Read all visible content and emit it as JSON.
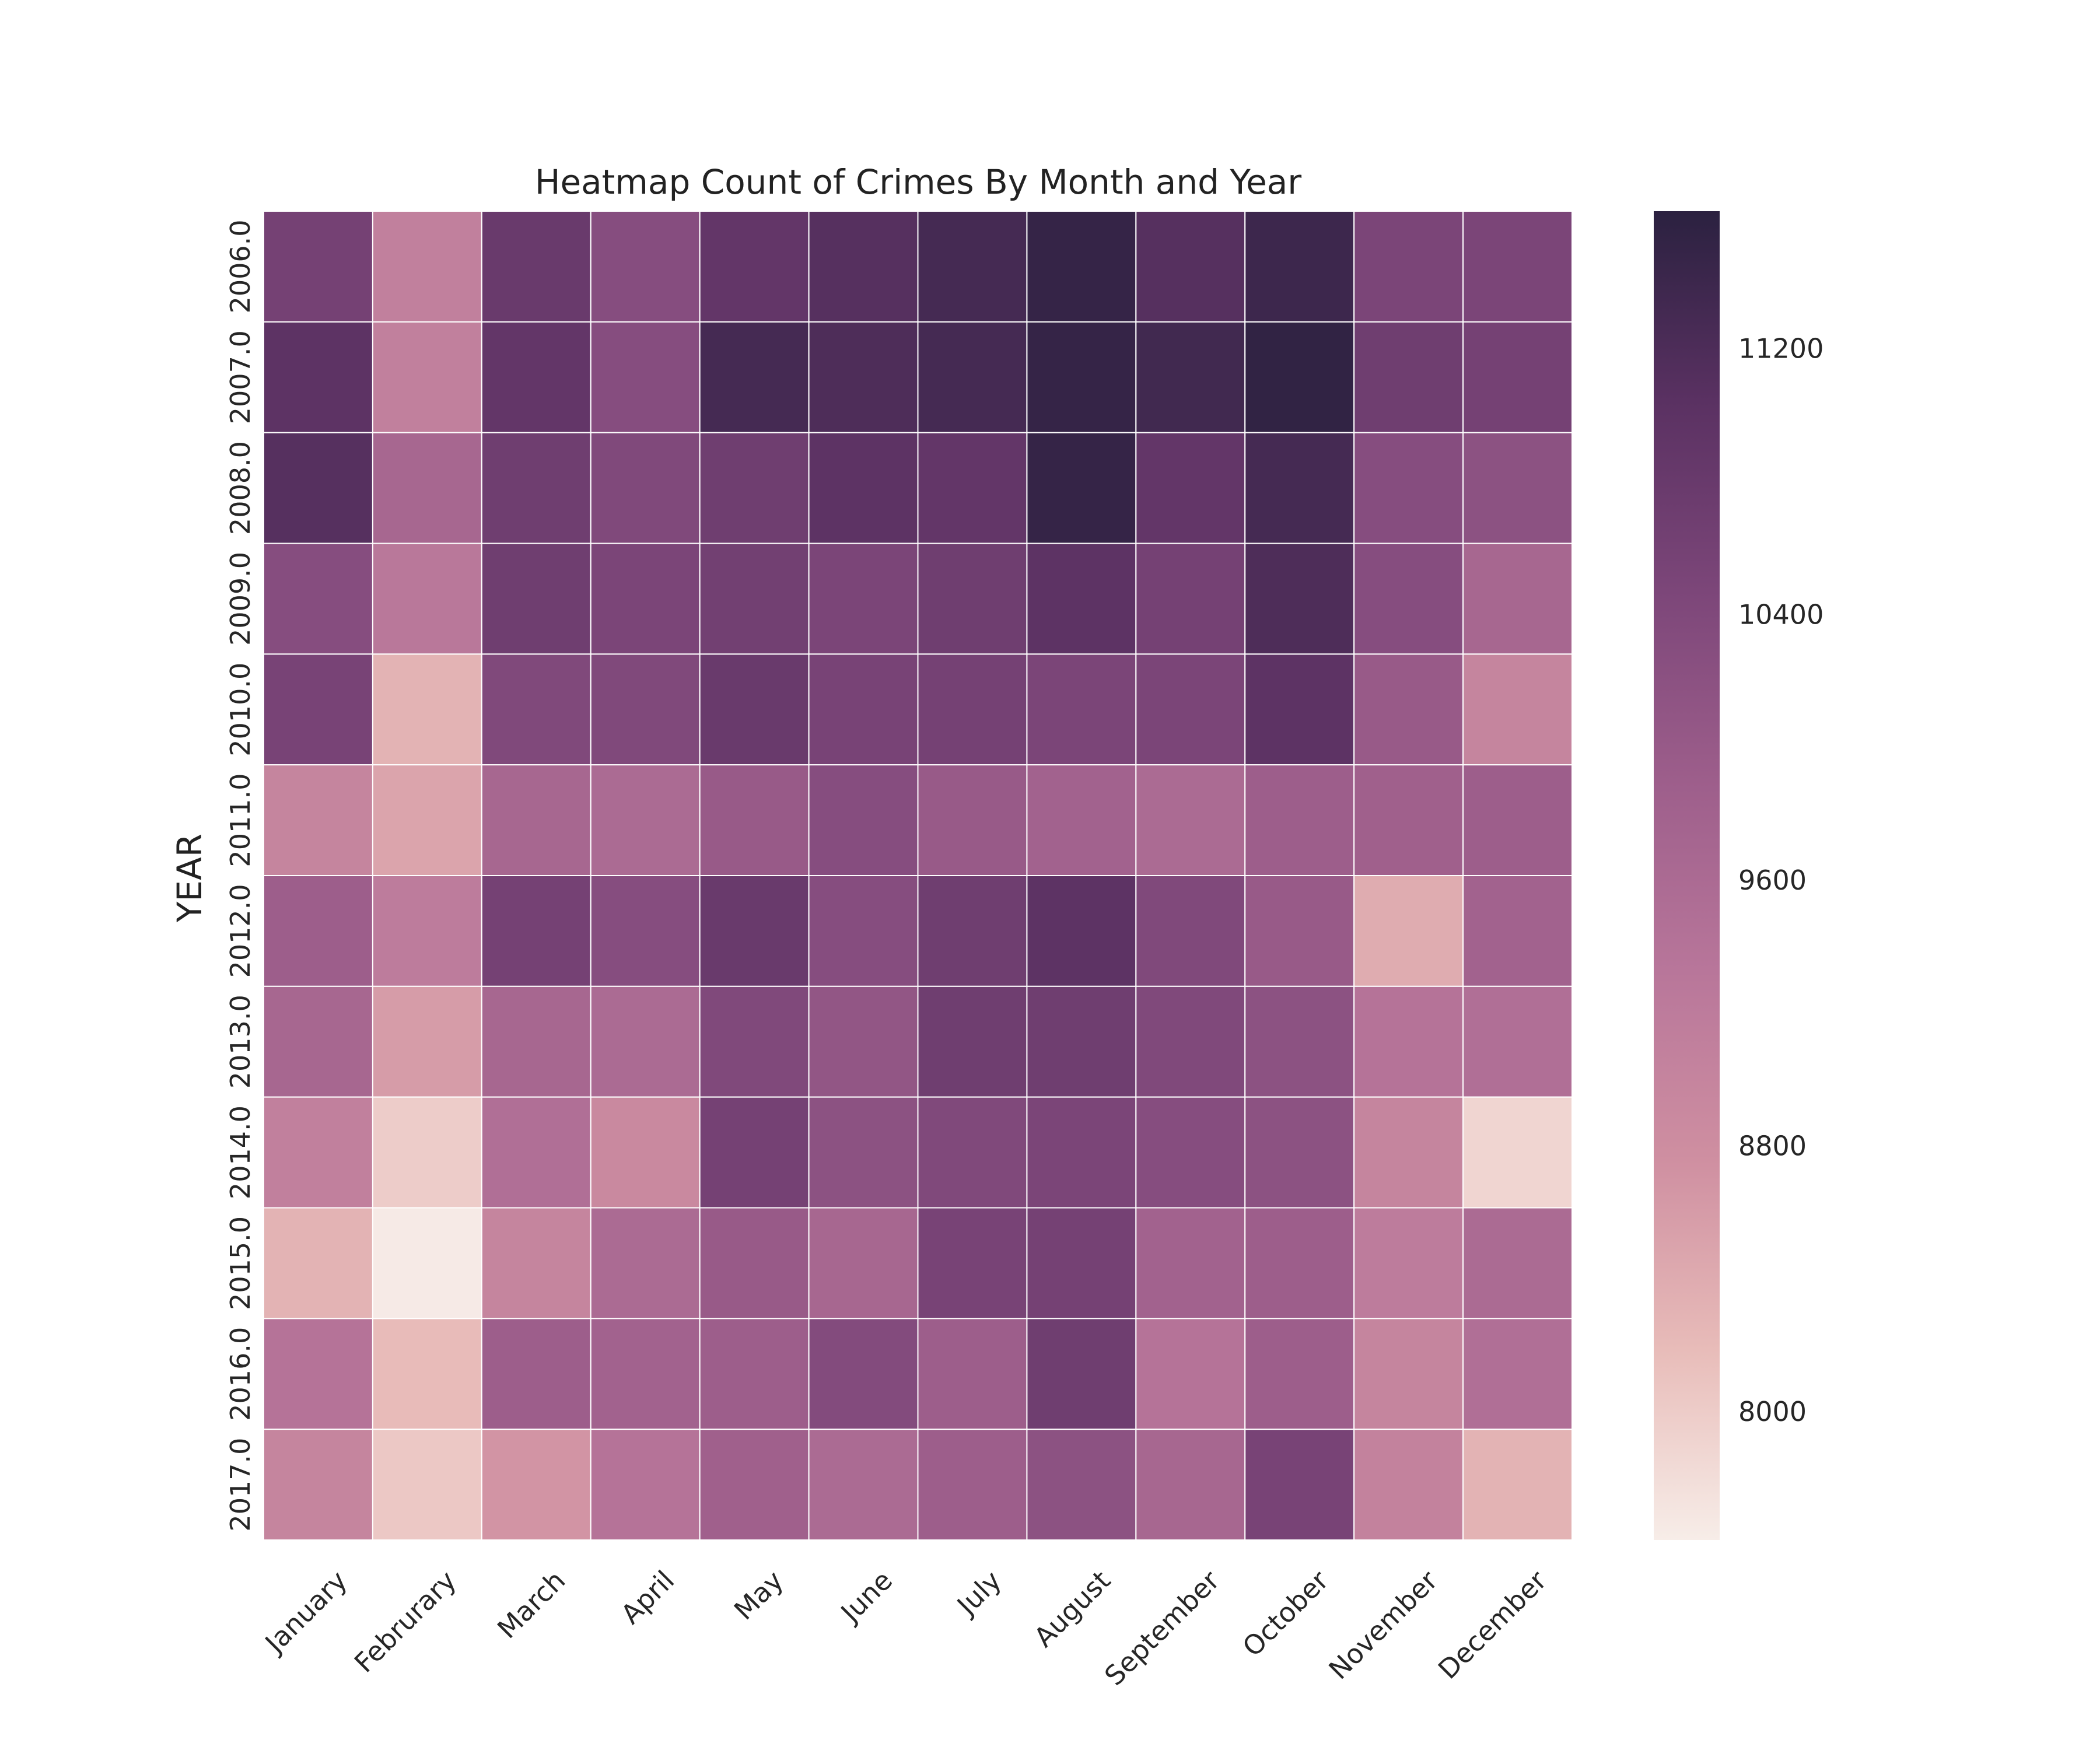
{
  "chart_data": {
    "type": "heatmap",
    "title": "Heatmap Count of Crimes By Month and Year",
    "xlabel": "",
    "ylabel": "YEAR",
    "x_categories": [
      "January",
      "Februrary",
      "March",
      "April",
      "May",
      "June",
      "July",
      "August",
      "September",
      "October",
      "November",
      "December"
    ],
    "y_categories": [
      "2006.0",
      "2007.0",
      "2008.0",
      "2009.0",
      "2010.0",
      "2011.0",
      "2012.0",
      "2013.0",
      "2014.0",
      "2015.0",
      "2016.0",
      "2017.0"
    ],
    "values": [
      [
        10600,
        9100,
        10800,
        10300,
        10900,
        11100,
        11300,
        11500,
        11100,
        11400,
        10500,
        10500
      ],
      [
        11000,
        9100,
        10900,
        10300,
        11300,
        11200,
        11300,
        11500,
        11350,
        11550,
        10700,
        10600
      ],
      [
        11100,
        9700,
        10700,
        10400,
        10700,
        11000,
        10900,
        11500,
        10900,
        11300,
        10300,
        10200
      ],
      [
        10300,
        9300,
        10700,
        10500,
        10650,
        10500,
        10700,
        11000,
        10600,
        11200,
        10300,
        9700
      ],
      [
        10550,
        8300,
        10400,
        10400,
        10800,
        10550,
        10600,
        10500,
        10500,
        11000,
        10000,
        9000
      ],
      [
        9000,
        8500,
        9700,
        9600,
        10000,
        10300,
        10000,
        9800,
        9600,
        9900,
        9850,
        9900
      ],
      [
        9900,
        9200,
        10600,
        10300,
        10800,
        10300,
        10700,
        11000,
        10400,
        10000,
        8400,
        9800
      ],
      [
        9700,
        8600,
        9700,
        9600,
        10400,
        10100,
        10700,
        10700,
        10400,
        10200,
        9400,
        9500
      ],
      [
        9100,
        8000,
        9500,
        8900,
        10600,
        10200,
        10400,
        10500,
        10300,
        10200,
        9000,
        7900
      ],
      [
        8300,
        7650,
        9000,
        9600,
        10000,
        9700,
        10550,
        10600,
        9800,
        9900,
        9200,
        9600
      ],
      [
        9400,
        8200,
        9900,
        9800,
        9900,
        10350,
        9900,
        10700,
        9400,
        9900,
        9000,
        9500
      ],
      [
        9000,
        8050,
        8700,
        9400,
        9850,
        9600,
        9900,
        10200,
        9700,
        10550,
        9050,
        8300
      ]
    ],
    "colorbar_ticks": [
      8000,
      8800,
      9600,
      10400,
      11200
    ],
    "color_range": [
      7620,
      11620
    ],
    "colormap": [
      "#f7ede8",
      "#e8bcb9",
      "#cf8fa1",
      "#b8769a",
      "#9d5e8b",
      "#7c4679",
      "#5a3162",
      "#2b2140"
    ],
    "grid_color": "#ffffff"
  }
}
